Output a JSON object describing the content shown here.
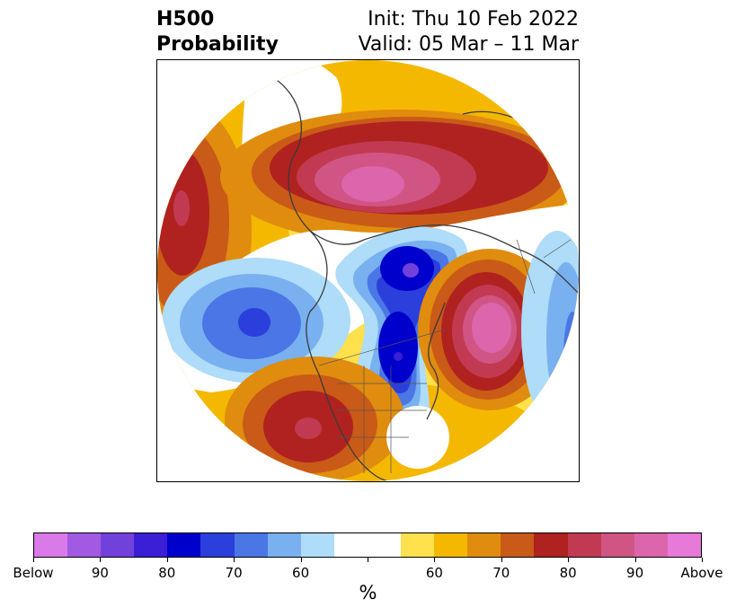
{
  "header": {
    "title_line1": "H500",
    "title_line2": "Probability",
    "init": "Init: Thu 10 Feb 2022",
    "valid": "Valid: 05 Mar – 11 Mar"
  },
  "colorbar": {
    "colors": [
      "#d97ae8",
      "#a25ae2",
      "#7241dc",
      "#3a1fd6",
      "#0000cc",
      "#2a3fdb",
      "#4a76e6",
      "#79b0f0",
      "#aedcf9",
      "#ffffff",
      "#ffffff",
      "#ffe04d",
      "#f5b800",
      "#e08c0e",
      "#c95a17",
      "#b0221f",
      "#c23a52",
      "#d05584",
      "#dc65ab",
      "#e77ad8"
    ],
    "tick_labels": [
      "Below",
      "90",
      "80",
      "70",
      "60",
      "",
      "60",
      "70",
      "80",
      "90",
      "Above"
    ],
    "unit_label": "%"
  },
  "map_colors": {
    "orange1": "#ffe04d",
    "orange2": "#f5b800",
    "orange3": "#e08c0e",
    "orange4": "#c95a17",
    "red1": "#b0221f",
    "red2": "#c23a52",
    "red3": "#d05584",
    "pink": "#dc65ab",
    "blue1": "#aedcf9",
    "blue2": "#79b0f0",
    "blue3": "#4a76e6",
    "blue4": "#2a3fdb",
    "blue5": "#0000cc",
    "purple": "#7241dc"
  }
}
